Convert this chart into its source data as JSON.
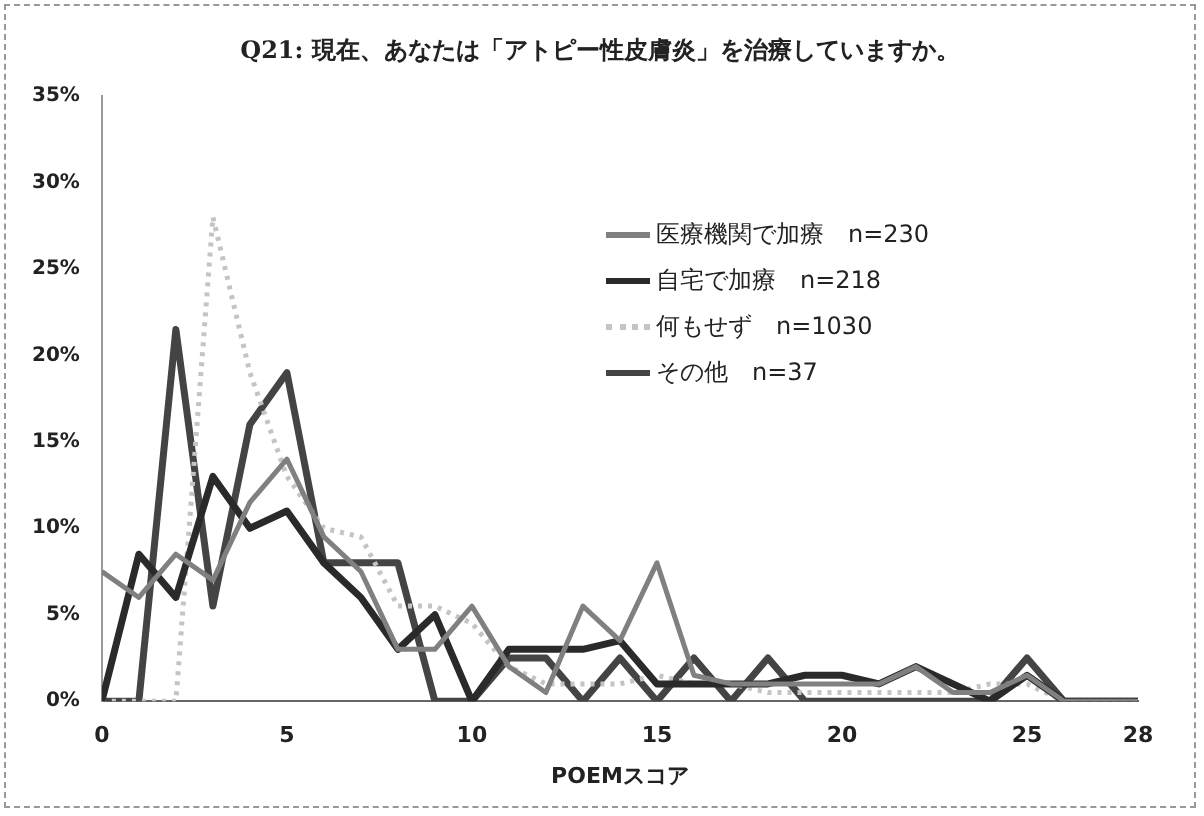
{
  "chart_data": {
    "type": "line",
    "title": "Q21: 現在、あなたは「アトピー性皮膚炎」を治療していますか。",
    "xlabel": "POEMスコア",
    "x": [
      0,
      1,
      2,
      3,
      4,
      5,
      6,
      7,
      8,
      9,
      10,
      11,
      12,
      13,
      14,
      15,
      16,
      17,
      18,
      19,
      20,
      21,
      22,
      23,
      24,
      25,
      26,
      27,
      28
    ],
    "xlim": [
      0,
      28
    ],
    "xticks": [
      0,
      5,
      10,
      15,
      20,
      25,
      28
    ],
    "ylim": [
      0,
      35
    ],
    "yticks": [
      {
        "value": 0,
        "label": "0%"
      },
      {
        "value": 5,
        "label": "5%"
      },
      {
        "value": 10,
        "label": "10%"
      },
      {
        "value": 15,
        "label": "15%"
      },
      {
        "value": 20,
        "label": "20%"
      },
      {
        "value": 25,
        "label": "25%"
      },
      {
        "value": 30,
        "label": "30%"
      },
      {
        "value": 35,
        "label": "35%"
      }
    ],
    "grid": false,
    "legend": "top right",
    "marker": "none",
    "series": [
      {
        "name": "医療機関で加療　n=230",
        "color": "#808080",
        "line_style": "solid",
        "values": [
          7.5,
          6,
          8.5,
          7,
          11.5,
          14,
          9.5,
          7.5,
          3,
          3,
          5.5,
          2,
          0.5,
          5.5,
          3.5,
          8,
          1.5,
          1,
          1,
          1,
          1,
          1,
          2,
          0.5,
          0.5,
          1.5,
          0,
          0,
          0
        ]
      },
      {
        "name": "自宅で加療　n=218",
        "color": "#2a2a2a",
        "line_style": "solid",
        "values": [
          0,
          8.5,
          6,
          13,
          10,
          11,
          8,
          6,
          3,
          5,
          0,
          3,
          3,
          3,
          3.5,
          1,
          1,
          1,
          1,
          1.5,
          1.5,
          1,
          2,
          1,
          0,
          1.5,
          0,
          0,
          0
        ]
      },
      {
        "name": "何もせず　n=1030",
        "color": "#c4c4c4",
        "line_style": "dotted",
        "values": [
          0,
          0,
          0,
          28,
          19,
          13,
          10,
          9.5,
          5.5,
          5.5,
          4.5,
          2,
          1,
          1,
          1,
          1.5,
          1,
          1,
          0.5,
          0.5,
          0.5,
          0.5,
          0.5,
          0.5,
          1,
          1,
          0,
          0,
          0
        ]
      },
      {
        "name": "その他　n=37",
        "color": "#444444",
        "line_style": "solid",
        "values": [
          0,
          0,
          21.5,
          5.5,
          16,
          19,
          8,
          8,
          8,
          0,
          0,
          2.5,
          2.5,
          0,
          2.5,
          0,
          2.5,
          0,
          2.5,
          0,
          0,
          0,
          0,
          0,
          0,
          2.5,
          0,
          0,
          0
        ]
      }
    ]
  }
}
